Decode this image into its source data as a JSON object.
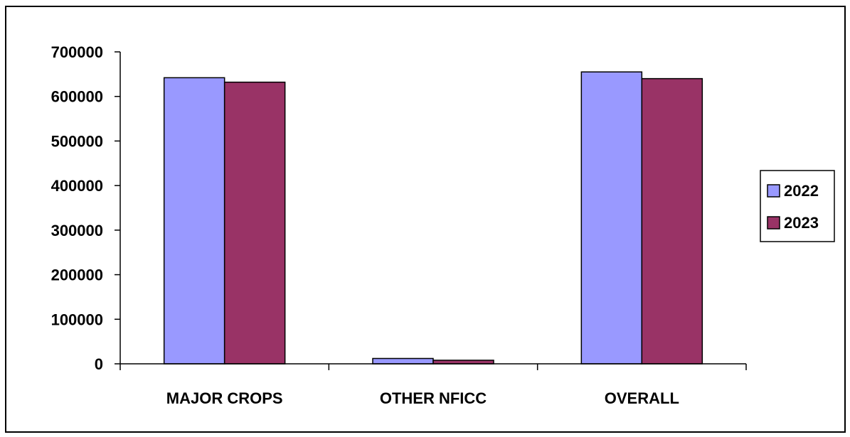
{
  "chart_data": {
    "type": "bar",
    "title": "",
    "xlabel": "",
    "ylabel": "",
    "categories": [
      "MAJOR CROPS",
      "OTHER NFICC",
      "OVERALL"
    ],
    "series": [
      {
        "name": "2022",
        "values": [
          642000,
          12000,
          655000
        ],
        "color": "#9999FF"
      },
      {
        "name": "2023",
        "values": [
          632000,
          8000,
          640000
        ],
        "color": "#993366"
      }
    ],
    "ylim": [
      0,
      700000
    ],
    "yticks": [
      "0",
      "100000",
      "200000",
      "300000",
      "400000",
      "500000",
      "600000",
      "700000"
    ],
    "grid": false,
    "legend_position": "right"
  }
}
